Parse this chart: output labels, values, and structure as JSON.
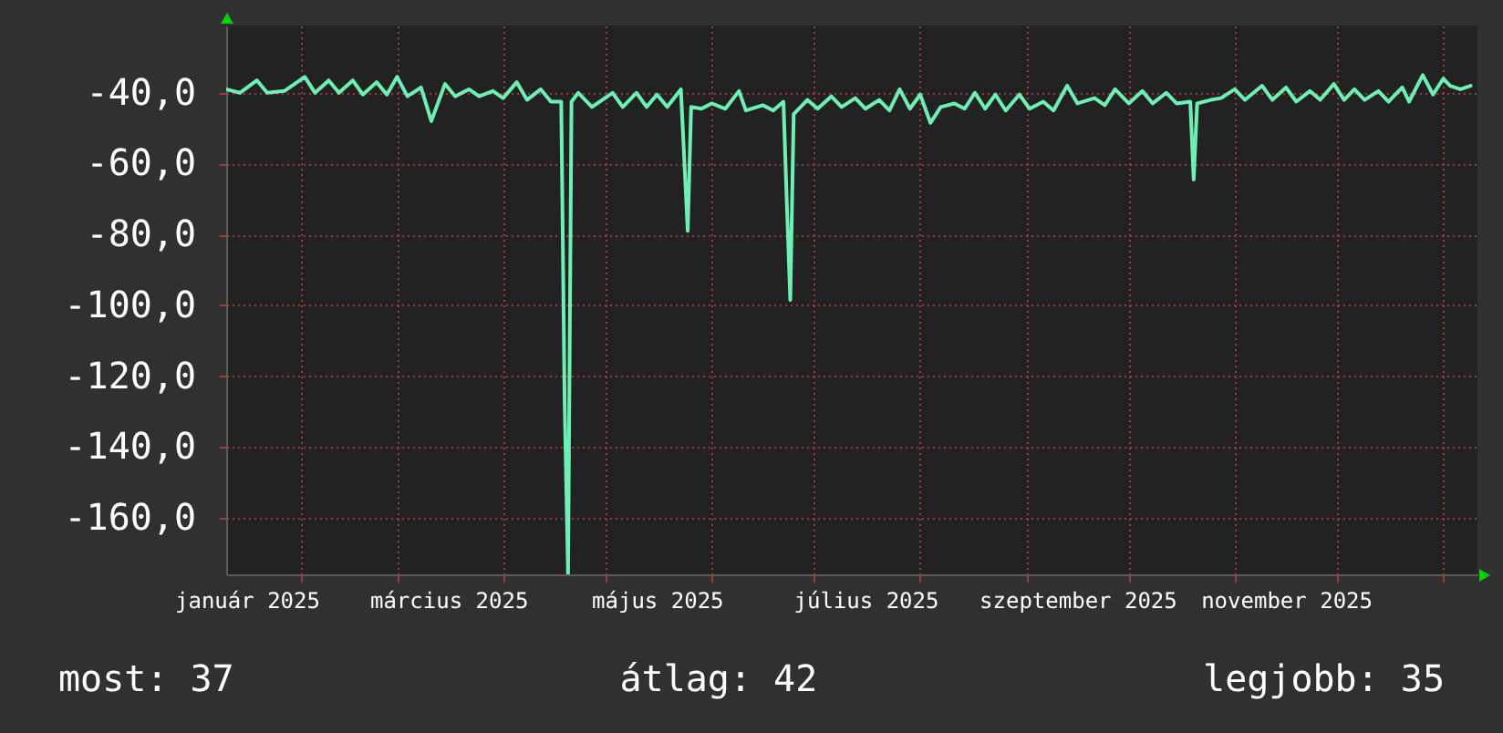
{
  "chart_data": {
    "type": "line",
    "x": [
      "2025-01-10",
      "2025-01-14",
      "2025-01-19",
      "2025-01-22",
      "2025-01-27",
      "2025-02-02",
      "2025-02-05",
      "2025-02-09",
      "2025-02-12",
      "2025-02-16",
      "2025-02-19",
      "2025-02-23",
      "2025-02-26",
      "2025-03-01",
      "2025-03-04",
      "2025-03-08",
      "2025-03-11",
      "2025-03-15",
      "2025-03-18",
      "2025-03-22",
      "2025-03-25",
      "2025-03-29",
      "2025-04-01",
      "2025-04-05",
      "2025-04-08",
      "2025-04-12",
      "2025-04-15",
      "2025-04-18",
      "2025-04-19",
      "2025-04-20",
      "2025-04-21",
      "2025-04-23",
      "2025-04-27",
      "2025-05-03",
      "2025-05-06",
      "2025-05-10",
      "2025-05-13",
      "2025-05-16",
      "2025-05-19",
      "2025-05-23",
      "2025-05-25",
      "2025-05-26",
      "2025-05-29",
      "2025-06-01",
      "2025-06-05",
      "2025-06-09",
      "2025-06-11",
      "2025-06-16",
      "2025-06-19",
      "2025-06-22",
      "2025-06-23",
      "2025-06-24",
      "2025-06-25",
      "2025-06-29",
      "2025-07-02",
      "2025-07-06",
      "2025-07-09",
      "2025-07-13",
      "2025-07-16",
      "2025-07-20",
      "2025-07-23",
      "2025-07-26",
      "2025-07-29",
      "2025-08-01",
      "2025-08-04",
      "2025-08-07",
      "2025-08-11",
      "2025-08-14",
      "2025-08-17",
      "2025-08-20",
      "2025-08-23",
      "2025-08-26",
      "2025-08-30",
      "2025-09-02",
      "2025-09-06",
      "2025-09-09",
      "2025-09-13",
      "2025-09-16",
      "2025-09-21",
      "2025-09-24",
      "2025-09-27",
      "2025-10-01",
      "2025-10-05",
      "2025-10-08",
      "2025-10-12",
      "2025-10-15",
      "2025-10-19",
      "2025-10-20",
      "2025-10-21",
      "2025-10-25",
      "2025-10-28",
      "2025-11-01",
      "2025-11-04",
      "2025-11-09",
      "2025-11-12",
      "2025-11-16",
      "2025-11-19",
      "2025-11-23",
      "2025-11-26",
      "2025-11-30",
      "2025-12-03",
      "2025-12-06",
      "2025-12-09",
      "2025-12-13",
      "2025-12-16",
      "2025-12-20",
      "2025-12-22",
      "2025-12-26",
      "2025-12-29",
      "2026-01-01",
      "2026-01-03",
      "2026-01-06",
      "2026-01-09"
    ],
    "series": [
      {
        "color": "#6ef0b4",
        "values": [
          -39,
          -40,
          -36.5,
          -40,
          -39.5,
          -35.5,
          -40,
          -36.5,
          -40,
          -36.5,
          -40.5,
          -37,
          -40.5,
          -35.5,
          -41,
          -38.5,
          -48,
          -37.5,
          -41,
          -39,
          -41,
          -39.5,
          -41.5,
          -37,
          -42,
          -39,
          -42.5,
          -42.5,
          -127.5,
          -176,
          -42.5,
          -40,
          -44,
          -40,
          -44,
          -40,
          -44,
          -40.5,
          -44,
          -39,
          -79,
          -44,
          -44.5,
          -43,
          -44.5,
          -39.5,
          -45,
          -43.5,
          -45,
          -42.5,
          -71.5,
          -98.5,
          -46,
          -42,
          -44.5,
          -41,
          -44,
          -41.5,
          -44.5,
          -42,
          -45,
          -39,
          -44.5,
          -40.5,
          -48.5,
          -44,
          -43,
          -44.5,
          -40,
          -44.5,
          -40.5,
          -45,
          -40.5,
          -44.5,
          -42.5,
          -45,
          -38,
          -43,
          -41.5,
          -43.5,
          -39,
          -43,
          -39.5,
          -43,
          -40,
          -43,
          -42.5,
          -64.5,
          -43,
          -42,
          -41.5,
          -39,
          -42,
          -38,
          -42,
          -38.5,
          -42.5,
          -39.5,
          -42,
          -37.5,
          -42,
          -39,
          -42,
          -39.5,
          -42.5,
          -38.5,
          -42.5,
          -35,
          -40.5,
          -36,
          -38,
          -39,
          -38
        ]
      }
    ],
    "xlim": [
      "2025-01-10",
      "2026-01-11"
    ],
    "xticks": [
      {
        "value": "2025-01-16",
        "label": "január 2025"
      },
      {
        "value": "2025-03-16",
        "label": "március 2025"
      },
      {
        "value": "2025-05-16",
        "label": "május 2025"
      },
      {
        "value": "2025-07-16",
        "label": "július 2025"
      },
      {
        "value": "2025-09-16",
        "label": "szeptember 2025"
      },
      {
        "value": "2025-11-16",
        "label": "november 2025"
      },
      {
        "value": "2025-02-01",
        "label": null
      },
      {
        "value": "2025-03-01",
        "label": null
      },
      {
        "value": "2025-04-01",
        "label": null
      },
      {
        "value": "2025-05-01",
        "label": null
      },
      {
        "value": "2025-06-01",
        "label": null
      },
      {
        "value": "2025-07-01",
        "label": null
      },
      {
        "value": "2025-08-01",
        "label": null
      },
      {
        "value": "2025-09-01",
        "label": null
      },
      {
        "value": "2025-10-01",
        "label": null
      },
      {
        "value": "2025-11-01",
        "label": null
      },
      {
        "value": "2025-12-01",
        "label": null
      },
      {
        "value": "2026-01-01",
        "label": null
      }
    ],
    "ylim": [
      -176,
      -21
    ],
    "yticks": [
      {
        "value": -40,
        "label": "-40,0"
      },
      {
        "value": -60,
        "label": "-60,0"
      },
      {
        "value": -80,
        "label": "-80,0"
      },
      {
        "value": -100,
        "label": "-100,0"
      },
      {
        "value": -120,
        "label": "-120,0"
      },
      {
        "value": -140,
        "label": "-140,0"
      },
      {
        "value": -160,
        "label": "-160,0"
      }
    ],
    "grid": true,
    "annotations": [
      "most: 37",
      "átlag: 42",
      "legjobb: 35"
    ]
  }
}
